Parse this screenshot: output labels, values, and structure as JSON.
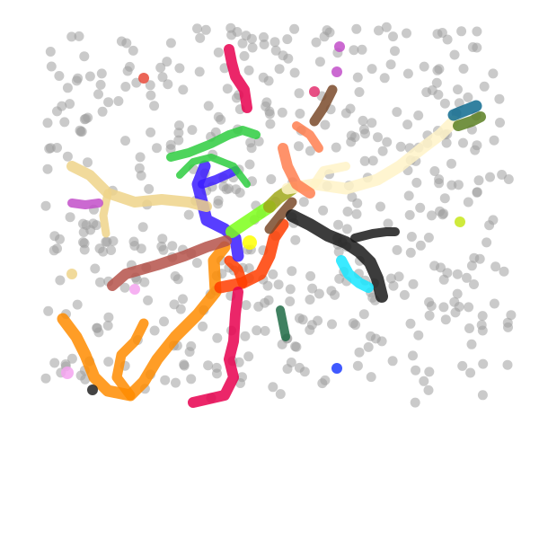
{
  "image": {
    "background_color": "#ffffff",
    "dot_color": "#9e9e9e",
    "description_free": true
  },
  "trail_colors": {
    "orange": "#ff8c00",
    "red_orange": "#ff3d00",
    "crimson": "#e8004f",
    "blue": "#3b1cff",
    "green": "#2ecc40",
    "lime": "#7dff1a",
    "cream": "#fff3c8",
    "khaki": "#efd38a",
    "brick": "#b5524a",
    "brown": "#7a4a2a",
    "coral": "#ff7f50",
    "black": "#1a1a1a",
    "cyan": "#18e6ff",
    "teal": "#0f6b8f",
    "olive": "#5a7f22",
    "magenta": "#c24fc9",
    "pink": "#f5a3f0",
    "yellow": "#ffff00",
    "forest": "#1f6b45",
    "olive_green": "#a0a81a"
  }
}
